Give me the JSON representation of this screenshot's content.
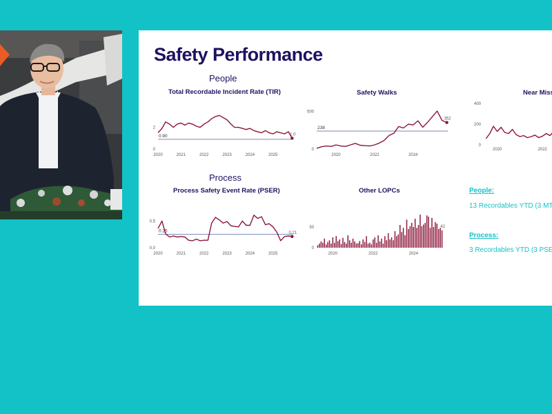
{
  "colors": {
    "background": "#12c2c7",
    "title": "#1f1160",
    "series": "#8a1538",
    "target": "#7a86b6",
    "accent": "#12c2c7"
  },
  "slide": {
    "title": "Safety Performance",
    "people_heading": "People",
    "process_heading": "Process",
    "summary": {
      "people_label": "People:",
      "people_text": "13 Recordables YTD (3 MT",
      "process_label": "Process:",
      "process_text": "3 Recordables YTD (3 PSE"
    }
  },
  "chart_data": [
    {
      "id": "tir",
      "type": "line",
      "title": "Total Recordable Incident Rate (TIR)",
      "x_ticks": [
        "2020",
        "2021",
        "2022",
        "2023",
        "2024",
        "2025"
      ],
      "y_ticks": [
        "0",
        "2"
      ],
      "ylim": [
        0,
        3.5
      ],
      "target": 0.9,
      "target_label": "0.90",
      "end_label": "1.0",
      "x": [
        2020.0,
        2020.17,
        2020.33,
        2020.5,
        2020.67,
        2020.83,
        2021.0,
        2021.17,
        2021.33,
        2021.5,
        2021.67,
        2021.83,
        2022.0,
        2022.17,
        2022.33,
        2022.5,
        2022.67,
        2022.83,
        2023.0,
        2023.17,
        2023.33,
        2023.5,
        2023.67,
        2023.83,
        2024.0,
        2024.17,
        2024.33,
        2024.5,
        2024.67,
        2024.83,
        2025.0,
        2025.17,
        2025.33,
        2025.5,
        2025.67,
        2025.83
      ],
      "y": [
        1.5,
        1.9,
        2.5,
        2.3,
        2.0,
        2.3,
        2.4,
        2.2,
        2.4,
        2.3,
        2.1,
        2.0,
        2.3,
        2.5,
        2.8,
        3.0,
        3.1,
        2.9,
        2.7,
        2.3,
        2.0,
        2.0,
        1.9,
        1.8,
        1.9,
        1.7,
        1.6,
        1.5,
        1.7,
        1.5,
        1.4,
        1.6,
        1.5,
        1.4,
        1.6,
        1.0
      ]
    },
    {
      "id": "walks",
      "type": "line",
      "title": "Safety Walks",
      "x_ticks": [
        "2020",
        "2022",
        "2024"
      ],
      "y_ticks": [
        "0",
        "500"
      ],
      "ylim": [
        0,
        550
      ],
      "target": 238,
      "target_label": "238",
      "end_label": "352",
      "x": [
        2019.0,
        2019.25,
        2019.5,
        2019.75,
        2020.0,
        2020.25,
        2020.5,
        2020.75,
        2021.0,
        2021.25,
        2021.5,
        2021.75,
        2022.0,
        2022.25,
        2022.5,
        2022.75,
        2023.0,
        2023.25,
        2023.5,
        2023.75,
        2024.0,
        2024.25,
        2024.5,
        2024.75,
        2025.0,
        2025.25,
        2025.5,
        2025.75
      ],
      "y": [
        10,
        30,
        40,
        35,
        55,
        40,
        35,
        55,
        75,
        50,
        45,
        40,
        55,
        80,
        115,
        180,
        210,
        300,
        280,
        330,
        320,
        375,
        290,
        355,
        430,
        505,
        380,
        352
      ]
    },
    {
      "id": "nearmiss",
      "type": "line",
      "title": "Near Miss",
      "x_ticks": [
        "2020",
        "2022"
      ],
      "y_ticks": [
        "0",
        "200",
        "400"
      ],
      "ylim": [
        0,
        400
      ],
      "x": [
        2019.5,
        2019.67,
        2019.83,
        2020.0,
        2020.17,
        2020.33,
        2020.5,
        2020.67,
        2020.83,
        2021.0,
        2021.17,
        2021.33,
        2021.5,
        2021.67,
        2021.83,
        2022.0,
        2022.17,
        2022.33,
        2022.5,
        2022.67,
        2022.83
      ],
      "y": [
        60,
        110,
        180,
        130,
        170,
        120,
        110,
        150,
        100,
        80,
        90,
        70,
        80,
        95,
        70,
        85,
        110,
        90,
        130,
        100,
        150
      ]
    },
    {
      "id": "pser",
      "type": "line",
      "title": "Process Safety Event Rate (PSER)",
      "x_ticks": [
        "2020",
        "2021",
        "2022",
        "2023",
        "2024",
        "2025"
      ],
      "y_ticks": [
        "0.0",
        "0.5"
      ],
      "ylim": [
        0,
        0.75
      ],
      "target": 0.25,
      "target_label": "0.25",
      "end_label": "0.21",
      "x": [
        2020.0,
        2020.17,
        2020.33,
        2020.5,
        2020.67,
        2020.83,
        2021.0,
        2021.17,
        2021.33,
        2021.5,
        2021.67,
        2021.83,
        2022.0,
        2022.17,
        2022.33,
        2022.5,
        2022.67,
        2022.83,
        2023.0,
        2023.17,
        2023.33,
        2023.5,
        2023.67,
        2023.83,
        2024.0,
        2024.17,
        2024.33,
        2024.5,
        2024.67,
        2024.83,
        2025.0,
        2025.17,
        2025.33,
        2025.5,
        2025.67,
        2025.83
      ],
      "y": [
        0.36,
        0.5,
        0.26,
        0.2,
        0.22,
        0.2,
        0.21,
        0.2,
        0.14,
        0.13,
        0.16,
        0.13,
        0.14,
        0.14,
        0.46,
        0.57,
        0.52,
        0.46,
        0.49,
        0.41,
        0.4,
        0.39,
        0.5,
        0.42,
        0.42,
        0.61,
        0.55,
        0.58,
        0.43,
        0.45,
        0.39,
        0.29,
        0.13,
        0.21,
        0.22,
        0.21
      ]
    },
    {
      "id": "lopc",
      "type": "bar",
      "title": "Other LOPCs",
      "x_ticks": [
        "2020",
        "2022",
        "2024"
      ],
      "y_ticks": [
        "0",
        "50"
      ],
      "ylim": [
        0,
        100
      ],
      "end_label": "42",
      "x_start": 2019.25,
      "x_step": 0.0833,
      "values": [
        6,
        10,
        15,
        12,
        22,
        8,
        14,
        18,
        10,
        25,
        12,
        28,
        16,
        20,
        9,
        24,
        14,
        10,
        30,
        18,
        12,
        22,
        15,
        10,
        11,
        16,
        8,
        20,
        14,
        28,
        10,
        12,
        8,
        20,
        25,
        12,
        30,
        15,
        22,
        10,
        28,
        18,
        35,
        20,
        25,
        18,
        40,
        28,
        32,
        55,
        38,
        48,
        30,
        68,
        45,
        52,
        60,
        50,
        70,
        48,
        55,
        80,
        52,
        56,
        60,
        78,
        75,
        48,
        72,
        50,
        62,
        58,
        45,
        48,
        42
      ]
    }
  ]
}
